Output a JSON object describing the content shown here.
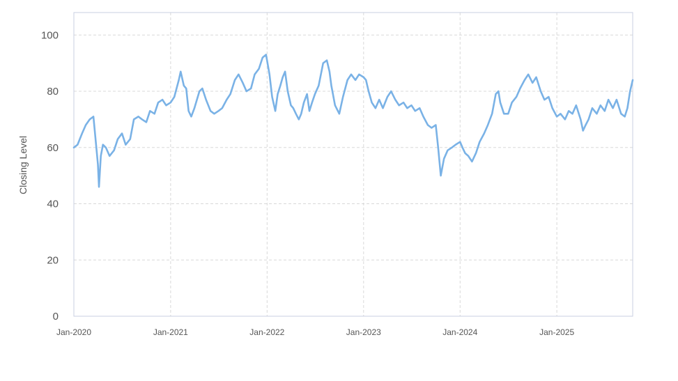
{
  "chart_data": {
    "type": "line",
    "title": "",
    "xlabel": "",
    "ylabel": "Closing Level",
    "ylim": [
      0,
      108
    ],
    "xlim": [
      "2020-01-01",
      "2025-10-15"
    ],
    "grid": true,
    "legend": "none",
    "y_ticks": [
      0,
      20,
      40,
      60,
      80,
      100
    ],
    "x_ticks": [
      {
        "date": "2020-01-01",
        "label": "Jan-2020"
      },
      {
        "date": "2021-01-01",
        "label": "Jan-2021"
      },
      {
        "date": "2022-01-01",
        "label": "Jan-2022"
      },
      {
        "date": "2023-01-01",
        "label": "Jan-2023"
      },
      {
        "date": "2024-01-01",
        "label": "Jan-2024"
      },
      {
        "date": "2025-01-01",
        "label": "Jan-2025"
      }
    ],
    "series": [
      {
        "color": "#7ab2e6",
        "points": [
          [
            "2020-01-01",
            60
          ],
          [
            "2020-01-15",
            61
          ],
          [
            "2020-02-01",
            65
          ],
          [
            "2020-02-15",
            68
          ],
          [
            "2020-03-01",
            70
          ],
          [
            "2020-03-15",
            71
          ],
          [
            "2020-03-22",
            64
          ],
          [
            "2020-04-01",
            54
          ],
          [
            "2020-04-05",
            46
          ],
          [
            "2020-04-12",
            57
          ],
          [
            "2020-04-20",
            61
          ],
          [
            "2020-05-01",
            60
          ],
          [
            "2020-05-15",
            57
          ],
          [
            "2020-06-01",
            59
          ],
          [
            "2020-06-15",
            63
          ],
          [
            "2020-07-01",
            65
          ],
          [
            "2020-07-15",
            61
          ],
          [
            "2020-08-01",
            63
          ],
          [
            "2020-08-15",
            70
          ],
          [
            "2020-09-01",
            71
          ],
          [
            "2020-09-15",
            70
          ],
          [
            "2020-10-01",
            69
          ],
          [
            "2020-10-15",
            73
          ],
          [
            "2020-11-01",
            72
          ],
          [
            "2020-11-15",
            76
          ],
          [
            "2020-12-01",
            77
          ],
          [
            "2020-12-15",
            75
          ],
          [
            "2021-01-01",
            76
          ],
          [
            "2021-01-15",
            78
          ],
          [
            "2021-02-01",
            84
          ],
          [
            "2021-02-08",
            87
          ],
          [
            "2021-02-20",
            82
          ],
          [
            "2021-03-01",
            81
          ],
          [
            "2021-03-10",
            73
          ],
          [
            "2021-03-20",
            71
          ],
          [
            "2021-04-01",
            74
          ],
          [
            "2021-04-20",
            80
          ],
          [
            "2021-05-01",
            81
          ],
          [
            "2021-05-15",
            77
          ],
          [
            "2021-06-01",
            73
          ],
          [
            "2021-06-15",
            72
          ],
          [
            "2021-07-01",
            73
          ],
          [
            "2021-07-15",
            74
          ],
          [
            "2021-08-01",
            77
          ],
          [
            "2021-08-15",
            79
          ],
          [
            "2021-09-01",
            84
          ],
          [
            "2021-09-15",
            86
          ],
          [
            "2021-10-01",
            83
          ],
          [
            "2021-10-15",
            80
          ],
          [
            "2021-11-01",
            81
          ],
          [
            "2021-11-15",
            86
          ],
          [
            "2021-12-01",
            88
          ],
          [
            "2021-12-15",
            92
          ],
          [
            "2021-12-28",
            93
          ],
          [
            "2022-01-10",
            86
          ],
          [
            "2022-01-20",
            78
          ],
          [
            "2022-02-01",
            73
          ],
          [
            "2022-02-10",
            79
          ],
          [
            "2022-02-20",
            82
          ],
          [
            "2022-03-01",
            85
          ],
          [
            "2022-03-10",
            87
          ],
          [
            "2022-03-20",
            80
          ],
          [
            "2022-04-01",
            75
          ],
          [
            "2022-04-10",
            74
          ],
          [
            "2022-04-20",
            72
          ],
          [
            "2022-05-01",
            70
          ],
          [
            "2022-05-10",
            72
          ],
          [
            "2022-05-20",
            76
          ],
          [
            "2022-06-01",
            79
          ],
          [
            "2022-06-10",
            73
          ],
          [
            "2022-06-20",
            76
          ],
          [
            "2022-07-01",
            79
          ],
          [
            "2022-07-15",
            82
          ],
          [
            "2022-08-01",
            90
          ],
          [
            "2022-08-15",
            91
          ],
          [
            "2022-08-25",
            87
          ],
          [
            "2022-09-01",
            82
          ],
          [
            "2022-09-15",
            75
          ],
          [
            "2022-10-01",
            72
          ],
          [
            "2022-10-15",
            78
          ],
          [
            "2022-11-01",
            84
          ],
          [
            "2022-11-15",
            86
          ],
          [
            "2022-12-01",
            84
          ],
          [
            "2022-12-15",
            86
          ],
          [
            "2023-01-01",
            85
          ],
          [
            "2023-01-10",
            84
          ],
          [
            "2023-01-20",
            80
          ],
          [
            "2023-02-01",
            76
          ],
          [
            "2023-02-15",
            74
          ],
          [
            "2023-03-01",
            77
          ],
          [
            "2023-03-15",
            74
          ],
          [
            "2023-04-01",
            78
          ],
          [
            "2023-04-15",
            80
          ],
          [
            "2023-05-01",
            77
          ],
          [
            "2023-05-15",
            75
          ],
          [
            "2023-06-01",
            76
          ],
          [
            "2023-06-15",
            74
          ],
          [
            "2023-07-01",
            75
          ],
          [
            "2023-07-15",
            73
          ],
          [
            "2023-08-01",
            74
          ],
          [
            "2023-08-15",
            71
          ],
          [
            "2023-09-01",
            68
          ],
          [
            "2023-09-15",
            67
          ],
          [
            "2023-10-01",
            68
          ],
          [
            "2023-10-10",
            60
          ],
          [
            "2023-10-20",
            50
          ],
          [
            "2023-11-01",
            56
          ],
          [
            "2023-11-15",
            59
          ],
          [
            "2023-12-01",
            60
          ],
          [
            "2023-12-15",
            61
          ],
          [
            "2024-01-01",
            62
          ],
          [
            "2024-01-10",
            60
          ],
          [
            "2024-01-20",
            58
          ],
          [
            "2024-02-01",
            57
          ],
          [
            "2024-02-15",
            55
          ],
          [
            "2024-03-01",
            58
          ],
          [
            "2024-03-15",
            62
          ],
          [
            "2024-04-01",
            65
          ],
          [
            "2024-04-15",
            68
          ],
          [
            "2024-05-01",
            72
          ],
          [
            "2024-05-15",
            79
          ],
          [
            "2024-05-25",
            80
          ],
          [
            "2024-06-01",
            76
          ],
          [
            "2024-06-15",
            72
          ],
          [
            "2024-07-01",
            72
          ],
          [
            "2024-07-15",
            76
          ],
          [
            "2024-08-01",
            78
          ],
          [
            "2024-08-15",
            81
          ],
          [
            "2024-09-01",
            84
          ],
          [
            "2024-09-15",
            86
          ],
          [
            "2024-10-01",
            83
          ],
          [
            "2024-10-15",
            85
          ],
          [
            "2024-11-01",
            80
          ],
          [
            "2024-11-15",
            77
          ],
          [
            "2024-12-01",
            78
          ],
          [
            "2024-12-15",
            74
          ],
          [
            "2025-01-01",
            71
          ],
          [
            "2025-01-15",
            72
          ],
          [
            "2025-02-01",
            70
          ],
          [
            "2025-02-15",
            73
          ],
          [
            "2025-03-01",
            72
          ],
          [
            "2025-03-15",
            75
          ],
          [
            "2025-04-01",
            70
          ],
          [
            "2025-04-10",
            66
          ],
          [
            "2025-04-20",
            68
          ],
          [
            "2025-05-01",
            70
          ],
          [
            "2025-05-15",
            74
          ],
          [
            "2025-06-01",
            72
          ],
          [
            "2025-06-15",
            75
          ],
          [
            "2025-07-01",
            73
          ],
          [
            "2025-07-15",
            77
          ],
          [
            "2025-08-01",
            74
          ],
          [
            "2025-08-15",
            77
          ],
          [
            "2025-09-01",
            72
          ],
          [
            "2025-09-15",
            71
          ],
          [
            "2025-09-25",
            74
          ],
          [
            "2025-10-05",
            80
          ],
          [
            "2025-10-15",
            84
          ]
        ]
      }
    ]
  }
}
